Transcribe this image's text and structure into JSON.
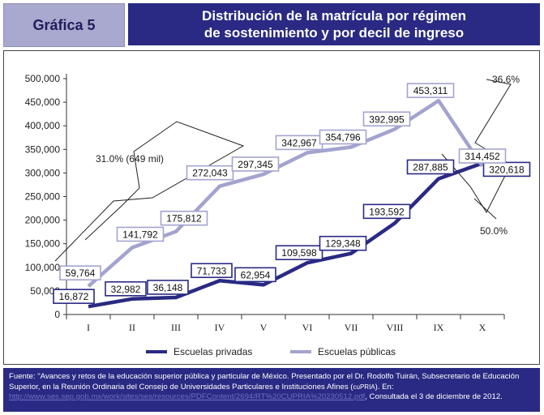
{
  "header": {
    "tab_label": "Gráfica 5",
    "title_line1": "Distribución de la matrícula por régimen",
    "title_line2": "de sostenimiento y por decil de ingreso"
  },
  "chart_data": {
    "type": "line",
    "categories": [
      "I",
      "II",
      "III",
      "IV",
      "V",
      "VI",
      "VII",
      "VIII",
      "IX",
      "X"
    ],
    "series": [
      {
        "name": "Escuelas privadas",
        "color": "#2a2a84",
        "values": [
          16872,
          32982,
          36148,
          71733,
          62954,
          109598,
          129348,
          193592,
          287885,
          320618
        ],
        "labels": [
          "16,872",
          "32,982",
          "36,148",
          "71,733",
          "62,954",
          "109,598",
          "129,348",
          "193,592",
          "287,885",
          "320,618"
        ]
      },
      {
        "name": "Escuelas públicas",
        "color": "#a3a3cf",
        "values": [
          59764,
          141792,
          175812,
          272043,
          297345,
          342967,
          354796,
          392995,
          453311,
          314452
        ],
        "labels": [
          "59,764",
          "141,792",
          "175,812",
          "272,043",
          "297,345",
          "342,967",
          "354,796",
          "392,995",
          "453,311",
          "314,452"
        ]
      }
    ],
    "ylim": [
      0,
      500000
    ],
    "yticks": [
      "0",
      "50,000",
      "100,000",
      "150,000",
      "200,000",
      "250,000",
      "300,000",
      "350,000",
      "400,000",
      "450,000",
      "500,000"
    ],
    "annotations": {
      "left_pct": "31.0% (649 mil)",
      "top_right_pct": "36.6%",
      "bottom_right_pct": "50.0%"
    }
  },
  "footer": {
    "text1": "Fuente: \"Avances y retos de la educación superior pública y particular de México. Presentado por el Dr. Rodolfo Tuirán, Subsecretario de Educación Superior, en la Reunión Ordinaria del Consejo de Universidades Particulares e Instituciones Afines (",
    "cupria": "cuPRIA",
    "text2": "). En: ",
    "url": "http://www.ses.sep.gob.mx/work/sites/ses/resources/PDFContent/2694/RT%20CUPRIA%20230512.pdf",
    "text3": ", Consultada el 3 de diciembre de 2012."
  }
}
